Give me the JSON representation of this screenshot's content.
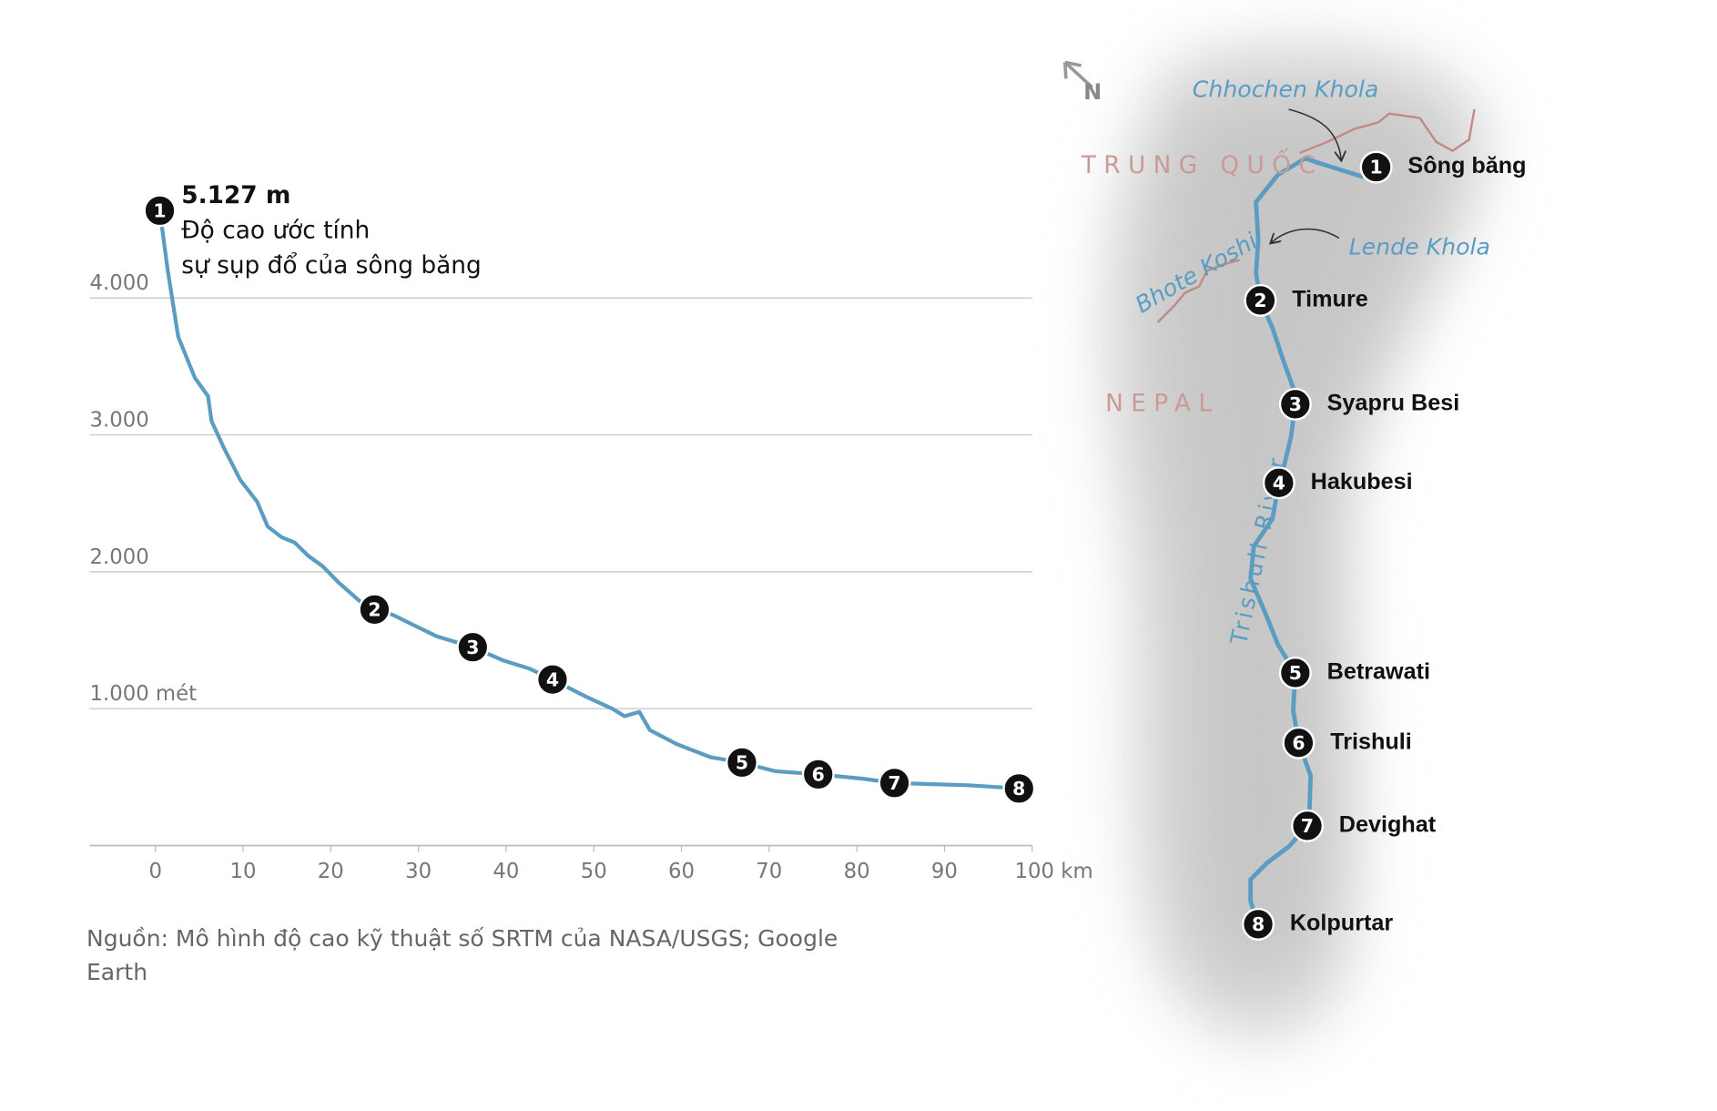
{
  "chart_data": {
    "type": "line",
    "annotation": {
      "value_text": "5.127 m",
      "lines": [
        "Độ cao ước tính",
        "sự sụp đổ của sông băng"
      ]
    },
    "source": "Nguồn: Mô hình độ cao kỹ thuật số SRTM của NASA/USGS; Google Earth",
    "x": [
      0.5,
      1.4,
      2.6,
      4.5,
      6.0,
      6.4,
      7.8,
      9.7,
      11.6,
      12.8,
      14.4,
      15.9,
      17.4,
      19.1,
      20.9,
      23.4,
      25.0,
      27.1,
      29.6,
      32.1,
      36.2,
      39.6,
      42.7,
      45.3,
      48.9,
      52.1,
      53.5,
      55.2,
      56.4,
      59.5,
      63.3,
      66.9,
      70.7,
      75.6,
      80.7,
      84.3,
      88.2,
      92.5,
      98.5
    ],
    "values": [
      4638,
      4205,
      3717,
      3417,
      3283,
      3102,
      2906,
      2669,
      2512,
      2331,
      2252,
      2213,
      2118,
      2039,
      1921,
      1780,
      1724,
      1685,
      1606,
      1528,
      1449,
      1354,
      1291,
      1213,
      1094,
      1000,
      945,
      976,
      843,
      740,
      646,
      606,
      543,
      520,
      488,
      457,
      449,
      441,
      417
    ],
    "point_labels": [
      "1",
      null,
      null,
      null,
      null,
      null,
      null,
      null,
      null,
      null,
      null,
      null,
      null,
      null,
      null,
      null,
      "2",
      null,
      null,
      null,
      "3",
      null,
      null,
      "4",
      null,
      null,
      null,
      null,
      null,
      null,
      null,
      "5",
      null,
      "6",
      null,
      "7",
      null,
      null,
      "8"
    ],
    "color": "#5b9cc2",
    "xlim": [
      -7.5,
      100
    ],
    "xticks": [
      0,
      10,
      20,
      30,
      40,
      50,
      60,
      70,
      80,
      90,
      {
        "value": 100,
        "label": "100 km"
      }
    ],
    "ylim": [
      0,
      4900
    ],
    "yticks": [
      {
        "value": 1000,
        "label": "1.000 mét"
      },
      {
        "value": 2000,
        "label": "2.000"
      },
      {
        "value": 3000,
        "label": "3.000"
      },
      {
        "value": 4000,
        "label": "4.000"
      }
    ],
    "grid": true
  },
  "map": {
    "compass": "N",
    "regions": [
      "TRUNG QUỐC",
      "NEPAL"
    ],
    "rivers": [
      "Chhochen Khola",
      "Lende Khola",
      "Bhote Koshi",
      "Trishuli River"
    ],
    "places": [
      {
        "number": "1",
        "name": "Sông băng"
      },
      {
        "number": "2",
        "name": "Timure"
      },
      {
        "number": "3",
        "name": "Syapru Besi"
      },
      {
        "number": "4",
        "name": "Hakubesi"
      },
      {
        "number": "5",
        "name": "Betrawati"
      },
      {
        "number": "6",
        "name": "Trishuli"
      },
      {
        "number": "7",
        "name": "Devighat"
      },
      {
        "number": "8",
        "name": "Kolpurtar"
      }
    ]
  }
}
